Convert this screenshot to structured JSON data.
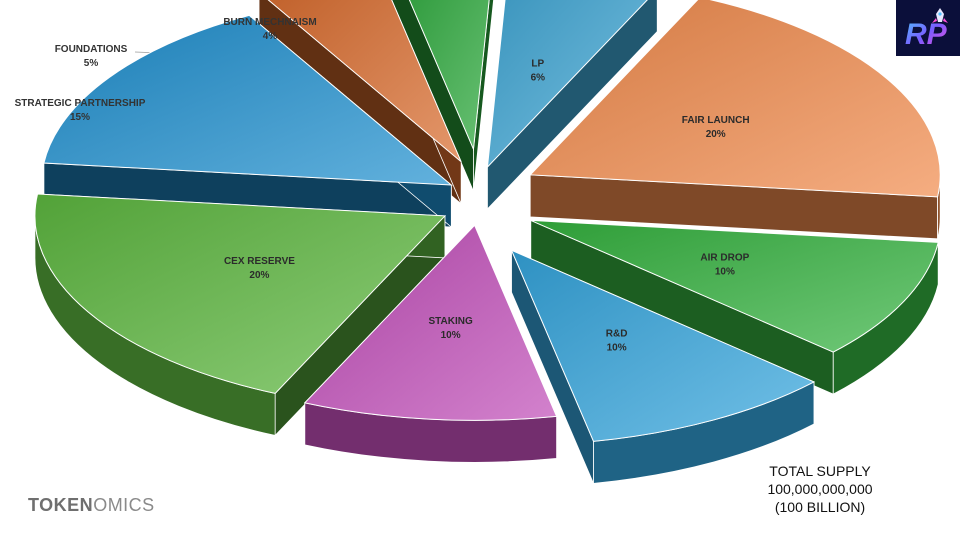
{
  "chart_data": {
    "type": "pie",
    "style": "exploded-3d",
    "slices": [
      {
        "label": "LP",
        "value": 6,
        "value_label": "6%",
        "color": "#3fa6d4",
        "label_position": "inside"
      },
      {
        "label": "FAIR LAUNCH",
        "value": 20,
        "value_label": "20%",
        "color": "#f08a4b",
        "label_position": "inside"
      },
      {
        "label": "AIR DROP",
        "value": 10,
        "value_label": "10%",
        "color": "#34b23f",
        "label_position": "inside"
      },
      {
        "label": "R&D",
        "value": 10,
        "value_label": "10%",
        "color": "#34a5dd",
        "label_position": "inside"
      },
      {
        "label": "STAKING",
        "value": 10,
        "value_label": "10%",
        "color": "#c04cb8",
        "label_position": "inside"
      },
      {
        "label": "CEX RESERVE",
        "value": 20,
        "value_label": "20%",
        "color": "#5db840",
        "label_position": "inside"
      },
      {
        "label": "STRATEGIC PARTNERSHIP",
        "value": 15,
        "value_label": "15%",
        "color": "#1f8fcf",
        "label_position": "outside"
      },
      {
        "label": "FOUNDATIONS",
        "value": 5,
        "value_label": "5%",
        "color": "#d86a2b",
        "label_position": "outside"
      },
      {
        "label": "BURN MECHNAISM",
        "value": 4,
        "value_label": "4%",
        "color": "#2aa83a",
        "label_position": "outside"
      }
    ]
  },
  "footer": {
    "title_bold": "TOKEN",
    "title_rest": "OMICS"
  },
  "supply": {
    "line1": "TOTAL SUPPLY",
    "line2": "100,000,000,000",
    "line3": "(100 BILLION)"
  },
  "logo": {
    "text": "RP",
    "icon": "rocket-icon",
    "colors": [
      "#7a5cff",
      "#ff4fd8",
      "#4fc3ff"
    ]
  }
}
